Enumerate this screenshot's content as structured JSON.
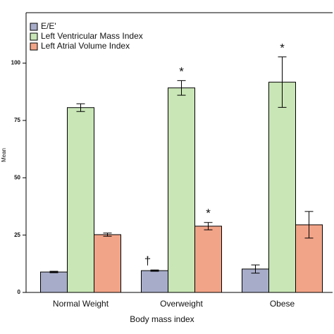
{
  "chart_data": {
    "type": "bar",
    "x_label": "Body mass index",
    "y_label": "Mean",
    "categories": [
      "Normal Weight",
      "Overweight",
      "Obese"
    ],
    "series": [
      {
        "name": "E/E'",
        "color": "#a7adc9",
        "values": [
          8.9,
          9.5,
          10.2
        ],
        "errors": [
          0.3,
          0.3,
          1.8
        ],
        "annotations": [
          null,
          "†",
          null
        ]
      },
      {
        "name": "Left Ventricular Mass Index",
        "color": "#c9e6b6",
        "values": [
          80.6,
          89.2,
          91.7
        ],
        "errors": [
          1.7,
          3.2,
          11
        ],
        "annotations": [
          null,
          "*",
          "*"
        ]
      },
      {
        "name": "Left Atrial Volume Index",
        "color": "#f2a488",
        "values": [
          25.2,
          28.9,
          29.5
        ],
        "errors": [
          0.7,
          1.6,
          5.8
        ],
        "annotations": [
          null,
          "*",
          null
        ]
      }
    ],
    "ylim": [
      0,
      122
    ],
    "yticks": [
      0,
      25,
      50,
      75,
      100
    ],
    "grid": false
  }
}
